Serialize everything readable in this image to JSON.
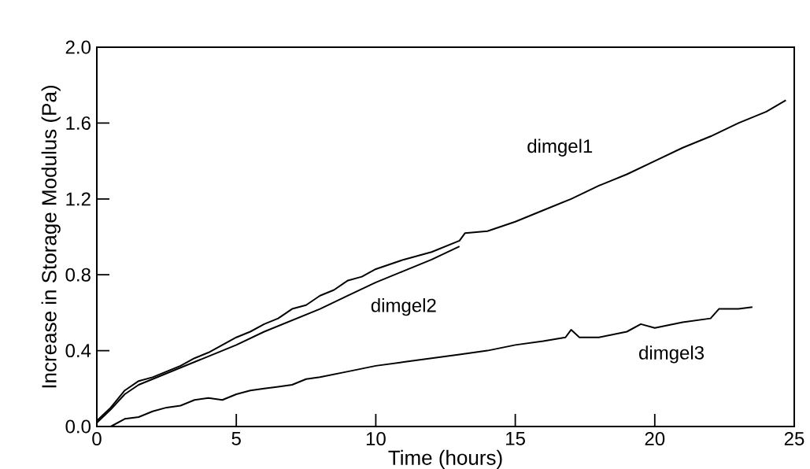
{
  "chart_data": {
    "type": "line",
    "xlabel": "Time (hours)",
    "ylabel": "Increase in Storage Modulus (Pa)",
    "xlim": [
      0,
      25
    ],
    "ylim": [
      0,
      2.0
    ],
    "xticks": [
      0,
      5,
      10,
      15,
      20,
      25
    ],
    "yticks": [
      {
        "value": 0,
        "label": "0.0"
      },
      {
        "value": 0.4,
        "label": "0.4"
      },
      {
        "value": 0.8,
        "label": "0.8"
      },
      {
        "value": 1.2,
        "label": "1.2"
      },
      {
        "value": 1.6,
        "label": "1.6"
      },
      {
        "value": 2.0,
        "label": "2.0"
      }
    ],
    "grid": false,
    "marker": "none",
    "line_style": "solid",
    "series": [
      {
        "name": "dimgel1",
        "color": "#000000",
        "x": [
          0,
          0.5,
          1,
          1.5,
          2,
          2.5,
          3,
          3.5,
          4,
          4.5,
          5,
          5.5,
          6,
          6.5,
          7,
          7.5,
          8,
          8.5,
          9,
          9.5,
          10,
          11,
          12,
          13,
          13.2,
          14,
          15,
          16,
          17,
          18,
          19,
          20,
          21,
          22,
          23,
          24,
          24.7
        ],
        "values": [
          0.03,
          0.1,
          0.19,
          0.24,
          0.26,
          0.29,
          0.32,
          0.36,
          0.39,
          0.43,
          0.47,
          0.5,
          0.54,
          0.57,
          0.62,
          0.64,
          0.69,
          0.72,
          0.77,
          0.79,
          0.83,
          0.88,
          0.92,
          0.98,
          1.02,
          1.03,
          1.08,
          1.14,
          1.2,
          1.27,
          1.33,
          1.4,
          1.47,
          1.53,
          1.6,
          1.66,
          1.72
        ]
      },
      {
        "name": "dimgel2",
        "color": "#000000",
        "x": [
          0,
          0.5,
          1,
          1.5,
          2,
          3,
          4,
          5,
          6,
          7,
          8,
          9,
          10,
          11,
          12,
          13
        ],
        "values": [
          0.02,
          0.09,
          0.17,
          0.22,
          0.25,
          0.31,
          0.37,
          0.43,
          0.5,
          0.56,
          0.62,
          0.69,
          0.76,
          0.82,
          0.88,
          0.95
        ]
      },
      {
        "name": "dimgel3",
        "color": "#000000",
        "x": [
          0.5,
          1,
          1.5,
          2,
          2.5,
          3,
          3.5,
          4,
          4.5,
          5,
          5.5,
          6,
          6.5,
          7,
          7.5,
          8,
          9,
          10,
          11,
          12,
          13,
          14,
          15,
          16,
          16.8,
          17,
          17.3,
          18,
          19,
          19.5,
          20,
          21,
          22,
          22.3,
          23,
          23.5
        ],
        "values": [
          0.0,
          0.04,
          0.05,
          0.08,
          0.1,
          0.11,
          0.14,
          0.15,
          0.14,
          0.17,
          0.19,
          0.2,
          0.21,
          0.22,
          0.25,
          0.26,
          0.29,
          0.32,
          0.34,
          0.36,
          0.38,
          0.4,
          0.43,
          0.45,
          0.47,
          0.51,
          0.47,
          0.47,
          0.5,
          0.54,
          0.52,
          0.55,
          0.57,
          0.62,
          0.62,
          0.63
        ]
      }
    ]
  }
}
